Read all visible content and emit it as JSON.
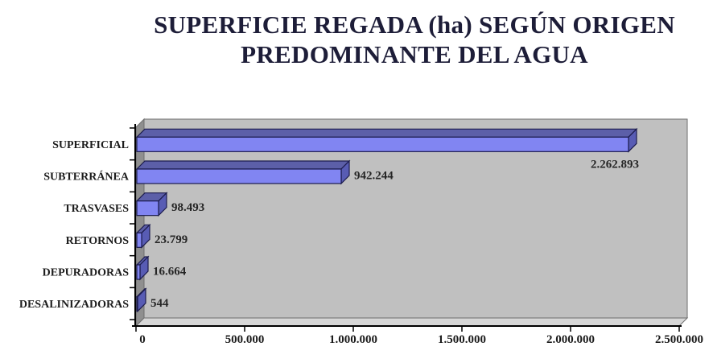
{
  "chart_data": {
    "type": "bar",
    "orientation": "horizontal",
    "style": "3d",
    "title": "SUPERFICIE REGADA (ha) SEGÚN ORIGEN PREDOMINANTE DEL AGUA",
    "title_lines": [
      "SUPERFICIE REGADA (ha) SEGÚN ORIGEN",
      "PREDOMINANTE DEL AGUA"
    ],
    "categories": [
      "SUPERFICIAL",
      "SUBTERRÁNEA",
      "TRASVASES",
      "RETORNOS",
      "DEPURADORAS",
      "DESALINIZADORAS"
    ],
    "values": [
      2262893,
      942244,
      98493,
      23799,
      16664,
      544
    ],
    "value_labels": [
      "2.262.893",
      "942.244",
      "98.493",
      "23.799",
      "16.664",
      "544"
    ],
    "first_label_below_bar": true,
    "xlabel": "",
    "ylabel": "",
    "xlim": [
      0,
      2500000
    ],
    "x_tick_values": [
      0,
      500000,
      1000000,
      1500000,
      2000000,
      2500000
    ],
    "x_tick_labels": [
      "0",
      "500.000",
      "1.000.000",
      "1.500.000",
      "2.000.000",
      "2.500.000"
    ],
    "grid": false,
    "legend": false,
    "colors": {
      "bar_front": "#8185f2",
      "bar_top": "#5c5fa8",
      "bar_side": "#585cb4",
      "bar_border": "#1c1c4e",
      "wall_back": "#c0c0c0",
      "wall_left": "#8f8f8f",
      "floor": "#d7d7d7",
      "wall_border": "#6e6e6e",
      "axis": "#000000",
      "title": "#1d1d38",
      "label": "#1c1c1c",
      "value_label": "#262626"
    }
  }
}
